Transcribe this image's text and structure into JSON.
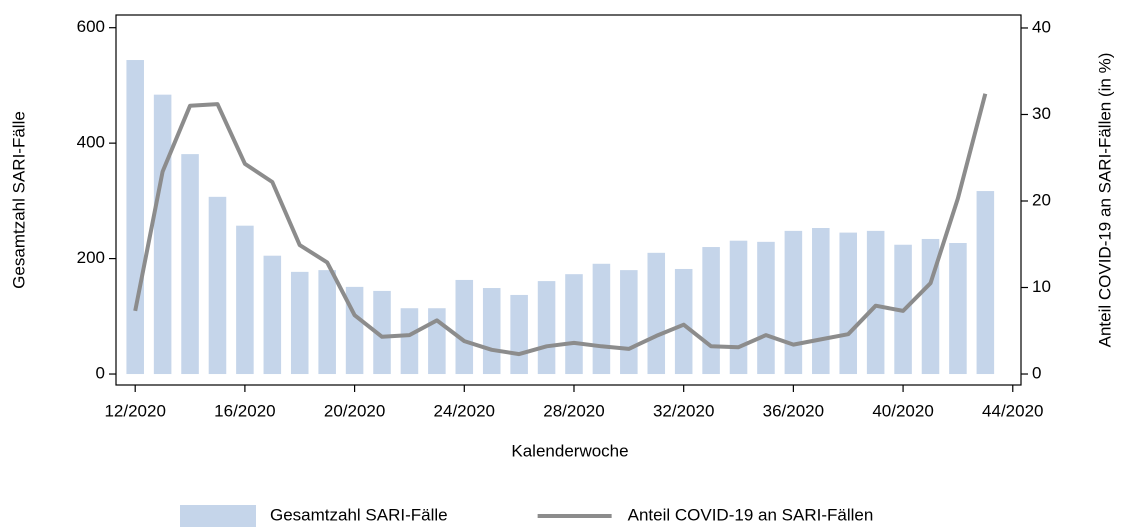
{
  "chart_data": {
    "type": "bar",
    "x_label": "Kalenderwoche",
    "y_label": "Gesamtzahl SARI-Fälle",
    "y2_label": "Anteil COVID-19 an SARI-Fällen (in %)",
    "x": [
      12,
      13,
      14,
      15,
      16,
      17,
      18,
      19,
      20,
      21,
      22,
      23,
      24,
      25,
      26,
      27,
      28,
      29,
      30,
      31,
      32,
      33,
      34,
      35,
      36,
      37,
      38,
      39,
      40,
      41,
      42,
      43
    ],
    "series": [
      {
        "name": "Gesamtzahl SARI-Fälle",
        "type": "bar",
        "color": "#c5d5ea",
        "values": [
          544,
          484,
          381,
          307,
          257,
          205,
          177,
          180,
          151,
          144,
          114,
          114,
          163,
          149,
          137,
          161,
          173,
          191,
          180,
          210,
          182,
          220,
          231,
          229,
          248,
          253,
          245,
          248,
          224,
          234,
          227,
          317
        ]
      },
      {
        "name": "Anteil COVID-19 an SARI-Fällen",
        "type": "line",
        "axis": "y2",
        "color": "#8c8c8c",
        "values": [
          7.3,
          23.4,
          31.0,
          31.2,
          24.3,
          22.2,
          14.9,
          12.9,
          6.8,
          4.3,
          4.5,
          6.2,
          3.8,
          2.8,
          2.3,
          3.2,
          3.6,
          3.2,
          2.9,
          4.4,
          5.7,
          3.2,
          3.1,
          4.5,
          3.4,
          4.0,
          4.6,
          7.9,
          7.3,
          10.5,
          20.3,
          32.4
        ]
      }
    ],
    "xlim": [
      11.3,
      44.3
    ],
    "xticks": [
      {
        "value": 12,
        "label": "12/2020"
      },
      {
        "value": 16,
        "label": "16/2020"
      },
      {
        "value": 20,
        "label": "20/2020"
      },
      {
        "value": 24,
        "label": "24/2020"
      },
      {
        "value": 28,
        "label": "28/2020"
      },
      {
        "value": 32,
        "label": "32/2020"
      },
      {
        "value": 36,
        "label": "36/2020"
      },
      {
        "value": 40,
        "label": "40/2020"
      },
      {
        "value": 44,
        "label": "44/2020"
      }
    ],
    "ylim": [
      -19,
      622
    ],
    "yticks": [
      0,
      200,
      400,
      600
    ],
    "y2lim": [
      -1.27,
      41.5
    ],
    "y2ticks": [
      0,
      10,
      20,
      30,
      40
    ],
    "legend": "bottom"
  }
}
